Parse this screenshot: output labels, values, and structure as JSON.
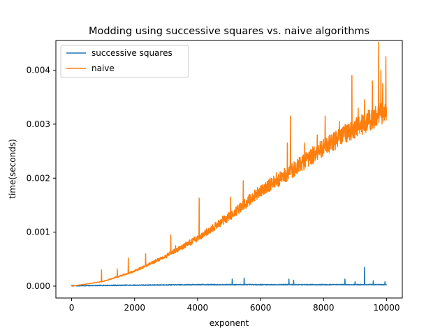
{
  "chart_data": {
    "type": "line",
    "title": "Modding using successive squares vs. naive algorithms",
    "xlabel": "exponent",
    "ylabel": "time(seconds)",
    "xlim": [
      -500,
      10500
    ],
    "ylim": [
      -0.00022,
      0.00455
    ],
    "x_ticks": [
      0,
      2000,
      4000,
      6000,
      8000,
      10000
    ],
    "x_tick_labels": [
      "0",
      "2000",
      "4000",
      "6000",
      "8000",
      "10000"
    ],
    "y_ticks": [
      0.0,
      0.001,
      0.002,
      0.003,
      0.004
    ],
    "y_tick_labels": [
      "0.000",
      "0.001",
      "0.002",
      "0.003",
      "0.004"
    ],
    "grid": false,
    "legend_position": "top-left",
    "series": [
      {
        "name": "successive squares",
        "color": "#1f77b4",
        "baseline": [
          [
            0,
            0.0
          ],
          [
            2000,
            1e-05
          ],
          [
            4000,
            2e-05
          ],
          [
            6000,
            2e-05
          ],
          [
            8000,
            2e-05
          ],
          [
            10000,
            2e-05
          ]
        ],
        "noise": 1.5e-05,
        "spikes": [
          [
            5100,
            0.00013
          ],
          [
            5480,
            0.00015
          ],
          [
            6900,
            0.00013
          ],
          [
            7050,
            0.00011
          ],
          [
            8680,
            0.00013
          ],
          [
            9000,
            8e-05
          ],
          [
            9300,
            0.00035
          ],
          [
            9580,
            0.0001
          ],
          [
            9950,
            8e-05
          ]
        ]
      },
      {
        "name": "naive",
        "color": "#ff7f0e",
        "baseline": [
          [
            0,
            0.0
          ],
          [
            1000,
            8e-05
          ],
          [
            2000,
            0.00026
          ],
          [
            3000,
            0.00052
          ],
          [
            4000,
            0.00083
          ],
          [
            5000,
            0.0012
          ],
          [
            6000,
            0.00165
          ],
          [
            7000,
            0.002
          ],
          [
            8000,
            0.0024
          ],
          [
            9000,
            0.00273
          ],
          [
            10000,
            0.00305
          ]
        ],
        "noise_frac": 0.14,
        "spikes": [
          [
            950,
            0.0003
          ],
          [
            1450,
            0.00032
          ],
          [
            1800,
            0.00052
          ],
          [
            2350,
            0.0006
          ],
          [
            3150,
            0.00095
          ],
          [
            3300,
            0.00075
          ],
          [
            4050,
            0.00163
          ],
          [
            4800,
            0.0013
          ],
          [
            5050,
            0.00165
          ],
          [
            5450,
            0.00195
          ],
          [
            6300,
            0.002
          ],
          [
            6500,
            0.0021
          ],
          [
            6850,
            0.00265
          ],
          [
            6950,
            0.00315
          ],
          [
            7400,
            0.00265
          ],
          [
            7800,
            0.0028
          ],
          [
            8050,
            0.00315
          ],
          [
            8500,
            0.00305
          ],
          [
            8900,
            0.0039
          ],
          [
            9100,
            0.0033
          ],
          [
            9300,
            0.00345
          ],
          [
            9550,
            0.0038
          ],
          [
            9750,
            0.00452
          ],
          [
            9820,
            0.004
          ],
          [
            9880,
            0.00375
          ],
          [
            9980,
            0.00425
          ]
        ]
      }
    ]
  }
}
